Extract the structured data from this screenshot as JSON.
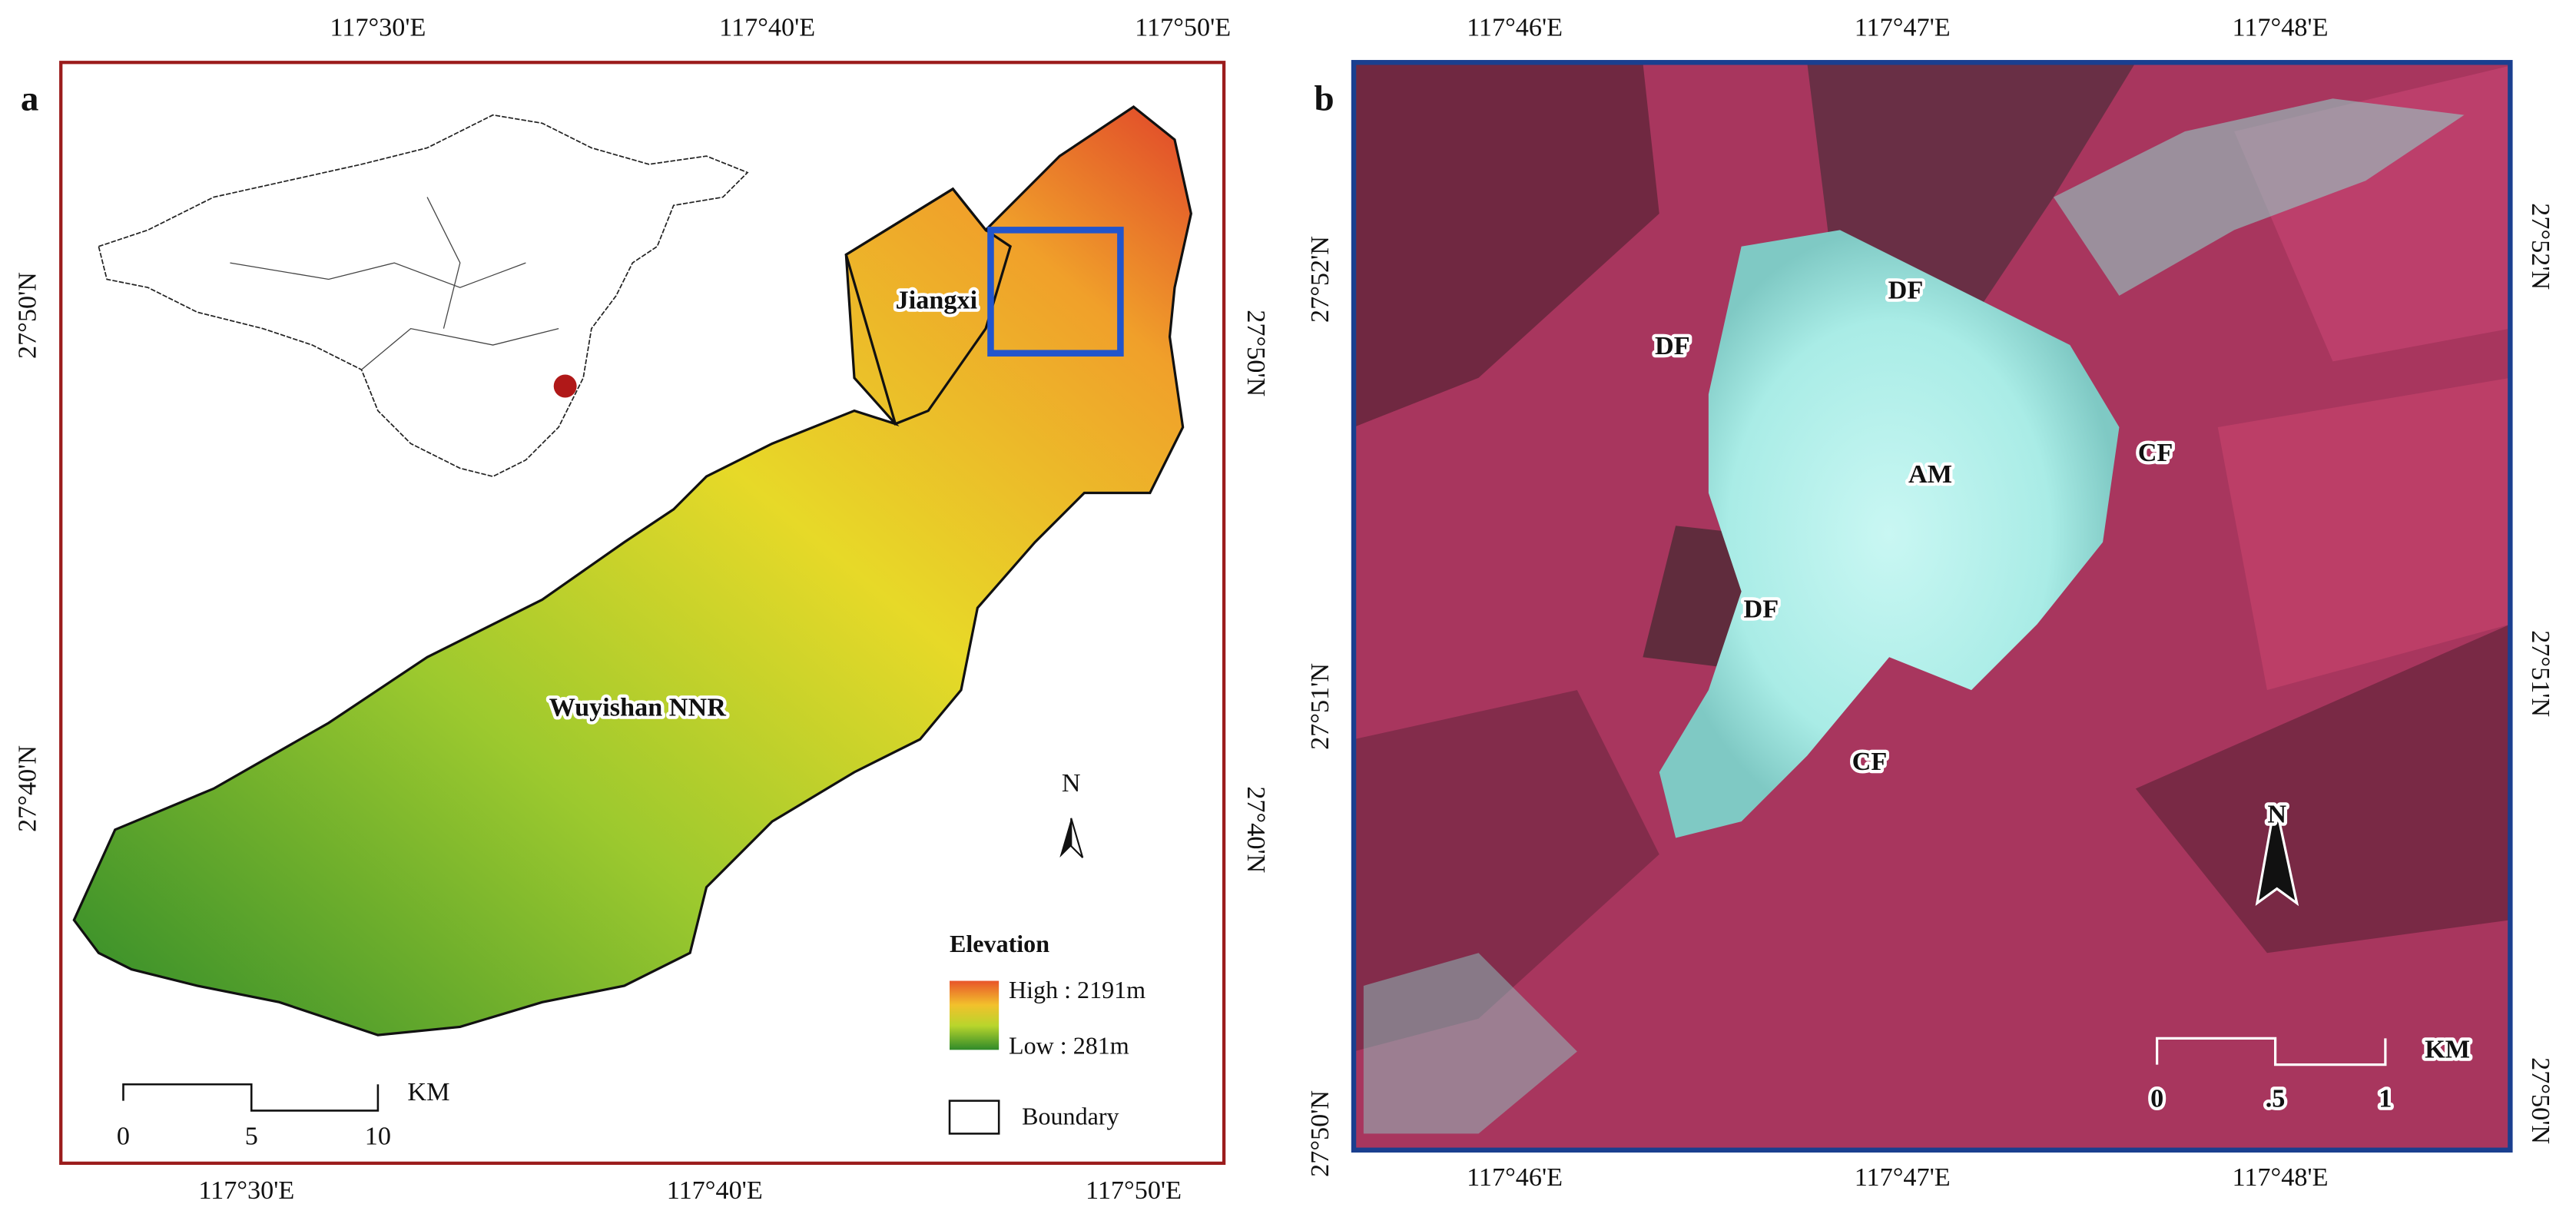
{
  "panels": [
    {
      "label": "a",
      "top_ticks": [
        "117°30'E",
        "117°40'E",
        "117°50'E"
      ],
      "bottom_ticks": [
        "117°30'E",
        "117°40'E",
        "117°50'E"
      ],
      "left_ticks": [
        "27°50'N",
        "27°40'N"
      ],
      "right_ticks": [
        "27°50'N",
        "27°40'N"
      ],
      "places": [
        "Jiangxi",
        "Wuyishan NNR"
      ],
      "north": "N",
      "legend": {
        "title": "Elevation",
        "high": "High : 2191m",
        "low": "Low : 281m",
        "boundary": "Boundary"
      },
      "scale": {
        "ticks": [
          "0",
          "5",
          "10"
        ],
        "unit": "KM"
      }
    },
    {
      "label": "b",
      "top_ticks": [
        "117°46'E",
        "117°47'E",
        "117°48'E"
      ],
      "bottom_ticks": [
        "117°46'E",
        "117°47'E",
        "117°48'E"
      ],
      "left_ticks": [
        "27°52'N",
        "27°51'N",
        "27°50'N"
      ],
      "right_ticks": [
        "27°52'N",
        "27°51'N",
        "27°50'N"
      ],
      "classes": [
        "DF",
        "DF",
        "AM",
        "CF",
        "DF",
        "CF"
      ],
      "north": "N",
      "scale": {
        "ticks": [
          "0",
          ".5",
          "1"
        ],
        "unit": "KM"
      }
    }
  ]
}
